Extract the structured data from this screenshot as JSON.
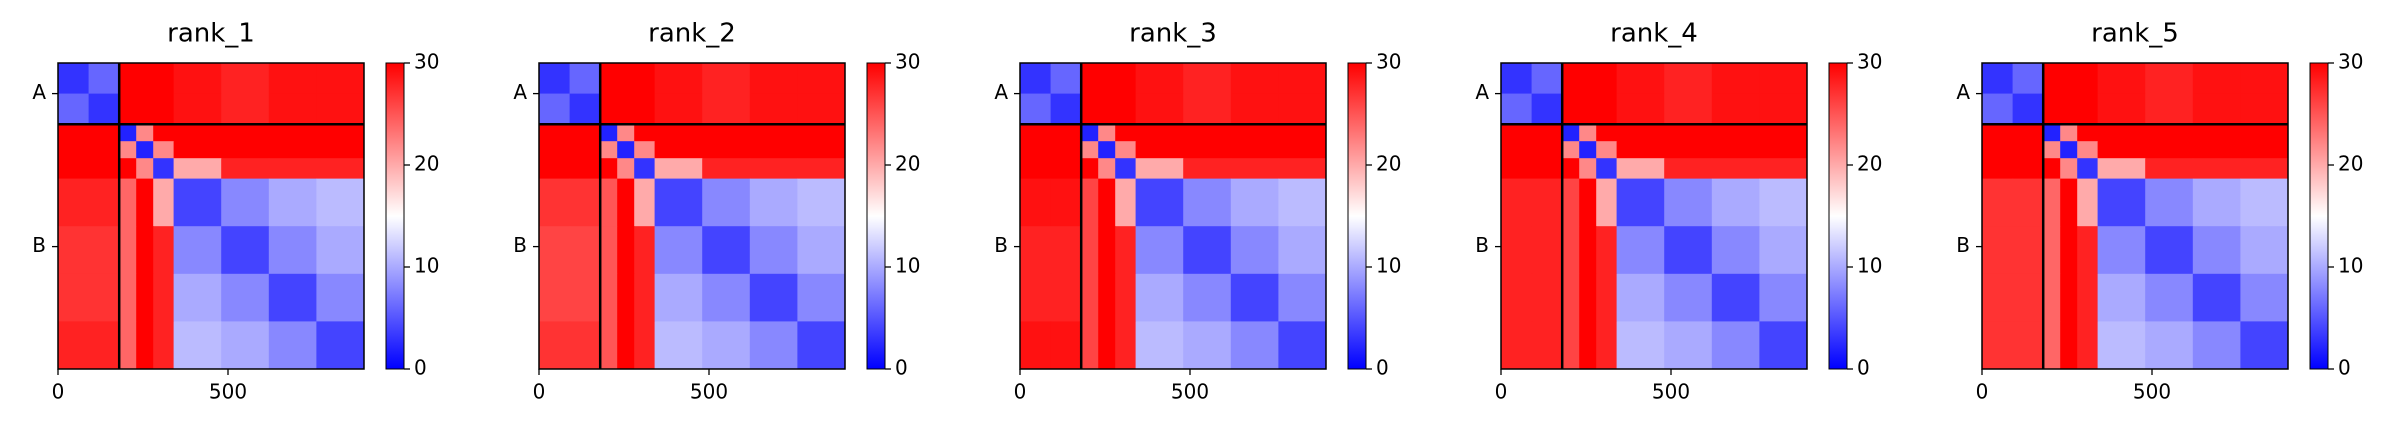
{
  "chart_data": [
    {
      "type": "heatmap",
      "title": "rank_1",
      "bins": [
        0,
        90,
        180,
        230,
        280,
        340,
        480,
        620,
        760,
        900
      ],
      "xlim": [
        0,
        900
      ],
      "ylim": [
        900,
        0
      ],
      "xticks": [
        0,
        500
      ],
      "yticks": [
        {
          "value": 90,
          "label": "A"
        },
        {
          "value": 540,
          "label": "B"
        }
      ],
      "chain_breaks": [
        180
      ],
      "clim": [
        0,
        30
      ],
      "cticks": [
        0,
        10,
        20,
        30
      ],
      "colormap": [
        "#0000ff",
        "#ffffff",
        "#ff0000"
      ],
      "z": [
        [
          3,
          6,
          30,
          30,
          30,
          29,
          28,
          29,
          29
        ],
        [
          6,
          3,
          30,
          30,
          30,
          29,
          28,
          29,
          29
        ],
        [
          30,
          30,
          2,
          22,
          30,
          30,
          30,
          30,
          30
        ],
        [
          30,
          30,
          22,
          2,
          22,
          30,
          30,
          30,
          30
        ],
        [
          30,
          30,
          30,
          22,
          3,
          20,
          28,
          28,
          28
        ],
        [
          28,
          28,
          24,
          30,
          20,
          4,
          8,
          10,
          11
        ],
        [
          27,
          27,
          24,
          30,
          28,
          8,
          4,
          8,
          10
        ],
        [
          27,
          27,
          24,
          30,
          28,
          10,
          8,
          4,
          8
        ],
        [
          28,
          28,
          24,
          30,
          28,
          11,
          10,
          8,
          4
        ]
      ]
    },
    {
      "type": "heatmap",
      "title": "rank_2",
      "bins": [
        0,
        90,
        180,
        230,
        280,
        340,
        480,
        620,
        760,
        900
      ],
      "xlim": [
        0,
        900
      ],
      "ylim": [
        900,
        0
      ],
      "xticks": [
        0,
        500
      ],
      "yticks": [
        {
          "value": 90,
          "label": "A"
        },
        {
          "value": 540,
          "label": "B"
        }
      ],
      "chain_breaks": [
        180
      ],
      "clim": [
        0,
        30
      ],
      "cticks": [
        0,
        10,
        20,
        30
      ],
      "colormap": [
        "#0000ff",
        "#ffffff",
        "#ff0000"
      ],
      "z": [
        [
          3,
          6,
          30,
          30,
          30,
          29,
          28,
          29,
          29
        ],
        [
          6,
          3,
          30,
          30,
          30,
          29,
          28,
          29,
          29
        ],
        [
          30,
          30,
          2,
          22,
          30,
          30,
          30,
          30,
          30
        ],
        [
          30,
          30,
          22,
          2,
          22,
          30,
          30,
          30,
          30
        ],
        [
          30,
          30,
          30,
          22,
          3,
          20,
          28,
          28,
          28
        ],
        [
          27,
          27,
          25,
          30,
          20,
          4,
          8,
          10,
          11
        ],
        [
          26,
          26,
          25,
          30,
          28,
          8,
          4,
          8,
          10
        ],
        [
          26,
          26,
          25,
          30,
          28,
          10,
          8,
          4,
          8
        ],
        [
          27,
          27,
          25,
          30,
          28,
          11,
          10,
          8,
          4
        ]
      ]
    },
    {
      "type": "heatmap",
      "title": "rank_3",
      "bins": [
        0,
        90,
        180,
        230,
        280,
        340,
        480,
        620,
        760,
        900
      ],
      "xlim": [
        0,
        900
      ],
      "ylim": [
        900,
        0
      ],
      "xticks": [
        0,
        500
      ],
      "yticks": [
        {
          "value": 90,
          "label": "A"
        },
        {
          "value": 540,
          "label": "B"
        }
      ],
      "chain_breaks": [
        180
      ],
      "clim": [
        0,
        30
      ],
      "cticks": [
        0,
        10,
        20,
        30
      ],
      "colormap": [
        "#0000ff",
        "#ffffff",
        "#ff0000"
      ],
      "z": [
        [
          3,
          6,
          30,
          30,
          30,
          29,
          28,
          29,
          29
        ],
        [
          6,
          3,
          30,
          30,
          30,
          29,
          28,
          29,
          29
        ],
        [
          30,
          30,
          2,
          22,
          30,
          30,
          30,
          30,
          30
        ],
        [
          30,
          30,
          22,
          2,
          22,
          30,
          30,
          30,
          30
        ],
        [
          30,
          30,
          30,
          22,
          3,
          20,
          28,
          28,
          28
        ],
        [
          29,
          29,
          26,
          30,
          20,
          4,
          8,
          10,
          11
        ],
        [
          28,
          28,
          26,
          30,
          28,
          8,
          4,
          8,
          10
        ],
        [
          28,
          28,
          26,
          30,
          28,
          10,
          8,
          4,
          8
        ],
        [
          29,
          29,
          26,
          30,
          28,
          11,
          10,
          8,
          4
        ]
      ]
    },
    {
      "type": "heatmap",
      "title": "rank_4",
      "bins": [
        0,
        90,
        180,
        230,
        280,
        340,
        480,
        620,
        760,
        900
      ],
      "xlim": [
        0,
        900
      ],
      "ylim": [
        900,
        0
      ],
      "xticks": [
        0,
        500
      ],
      "yticks": [
        {
          "value": 90,
          "label": "A"
        },
        {
          "value": 540,
          "label": "B"
        }
      ],
      "chain_breaks": [
        180
      ],
      "clim": [
        0,
        30
      ],
      "cticks": [
        0,
        10,
        20,
        30
      ],
      "colormap": [
        "#0000ff",
        "#ffffff",
        "#ff0000"
      ],
      "z": [
        [
          3,
          6,
          30,
          30,
          30,
          29,
          28,
          29,
          29
        ],
        [
          6,
          3,
          30,
          30,
          30,
          29,
          28,
          29,
          29
        ],
        [
          30,
          30,
          2,
          22,
          30,
          30,
          30,
          30,
          30
        ],
        [
          30,
          30,
          22,
          2,
          22,
          30,
          30,
          30,
          30
        ],
        [
          30,
          30,
          30,
          22,
          3,
          20,
          28,
          28,
          28
        ],
        [
          28,
          28,
          26,
          30,
          20,
          4,
          8,
          10,
          11
        ],
        [
          28,
          28,
          26,
          30,
          28,
          8,
          4,
          8,
          10
        ],
        [
          28,
          28,
          26,
          30,
          28,
          10,
          8,
          4,
          8
        ],
        [
          28,
          28,
          26,
          30,
          28,
          11,
          10,
          8,
          4
        ]
      ]
    },
    {
      "type": "heatmap",
      "title": "rank_5",
      "bins": [
        0,
        90,
        180,
        230,
        280,
        340,
        480,
        620,
        760,
        900
      ],
      "xlim": [
        0,
        900
      ],
      "ylim": [
        900,
        0
      ],
      "xticks": [
        0,
        500
      ],
      "yticks": [
        {
          "value": 90,
          "label": "A"
        },
        {
          "value": 540,
          "label": "B"
        }
      ],
      "chain_breaks": [
        180
      ],
      "clim": [
        0,
        30
      ],
      "cticks": [
        0,
        10,
        20,
        30
      ],
      "colormap": [
        "#0000ff",
        "#ffffff",
        "#ff0000"
      ],
      "z": [
        [
          3,
          6,
          30,
          30,
          30,
          29,
          28,
          29,
          29
        ],
        [
          6,
          3,
          30,
          30,
          30,
          29,
          28,
          29,
          29
        ],
        [
          30,
          30,
          2,
          22,
          30,
          30,
          30,
          30,
          30
        ],
        [
          30,
          30,
          22,
          2,
          22,
          30,
          30,
          30,
          30
        ],
        [
          30,
          30,
          30,
          22,
          3,
          20,
          28,
          28,
          28
        ],
        [
          27,
          27,
          24,
          30,
          20,
          4,
          8,
          10,
          11
        ],
        [
          27,
          27,
          24,
          30,
          28,
          8,
          4,
          8,
          10
        ],
        [
          27,
          27,
          24,
          30,
          28,
          10,
          8,
          4,
          8
        ],
        [
          27,
          27,
          24,
          30,
          28,
          11,
          10,
          8,
          4
        ]
      ]
    }
  ]
}
